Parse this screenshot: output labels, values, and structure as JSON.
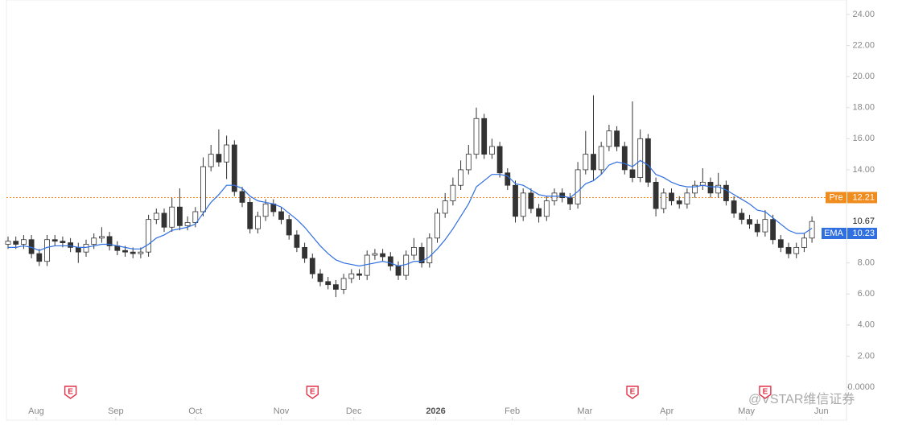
{
  "chart_data": {
    "type": "candlestick",
    "ylim": [
      0,
      24
    ],
    "yticks": [
      {
        "value": 24,
        "label": "24.00"
      },
      {
        "value": 22,
        "label": "22.00"
      },
      {
        "value": 20,
        "label": "20.00"
      },
      {
        "value": 18,
        "label": "18.00"
      },
      {
        "value": 16,
        "label": "16.00"
      },
      {
        "value": 14,
        "label": "14.00"
      },
      {
        "value": 12,
        "label": "12.00"
      },
      {
        "value": 10,
        "label": "10.00"
      },
      {
        "value": 8,
        "label": "8.00"
      },
      {
        "value": 6,
        "label": "6.00"
      },
      {
        "value": 4,
        "label": "4.00"
      },
      {
        "value": 2,
        "label": "2.00"
      },
      {
        "value": 0,
        "label": "0.0000"
      }
    ],
    "xticks": [
      {
        "value": 3.6,
        "label": "Aug"
      },
      {
        "value": 13.8,
        "label": "Sep"
      },
      {
        "value": 24,
        "label": "Oct"
      },
      {
        "value": 35,
        "label": "Nov"
      },
      {
        "value": 44.3,
        "label": "Dec"
      },
      {
        "value": 54.8,
        "label": "2026"
      },
      {
        "value": 64.6,
        "label": "Feb"
      },
      {
        "value": 73.9,
        "label": "Mar"
      },
      {
        "value": 84.4,
        "label": "Apr"
      },
      {
        "value": 94.6,
        "label": "May"
      },
      {
        "value": 104.2,
        "label": "Jun"
      }
    ],
    "open": [
      9.2,
      9.4,
      9.2,
      9.5,
      8.6,
      8.1,
      9.5,
      9.4,
      9.3,
      9.0,
      8.7,
      9.2,
      9.6,
      9.7,
      9.1,
      8.8,
      8.7,
      8.6,
      8.7,
      10.8,
      11.2,
      10.3,
      11.6,
      10.4,
      10.6,
      11.3,
      14.2,
      15.0,
      14.5,
      15.6,
      12.6,
      11.9,
      10.2,
      11.0,
      11.8,
      11.3,
      10.8,
      9.8,
      9.0,
      8.3,
      7.3,
      6.8,
      6.6,
      6.3,
      7.0,
      7.3,
      7.2,
      8.5,
      8.6,
      8.4,
      7.8,
      7.2,
      8.5,
      9.0,
      8.0,
      9.6,
      11.2,
      12.0,
      13.0,
      14.0,
      15.0,
      17.3,
      15.0,
      15.5,
      13.8,
      13.0,
      11.0,
      12.5,
      11.5,
      11.0,
      12.0,
      12.5,
      12.2,
      11.8,
      14.0,
      15.0,
      14.0,
      15.5,
      16.5,
      15.5,
      14.0,
      13.5,
      16.0,
      13.2,
      11.5,
      12.5,
      12.0,
      11.8,
      12.5,
      13.0,
      13.2,
      12.5,
      13.0,
      12.0,
      11.2,
      10.8,
      10.5,
      10.0,
      10.8,
      9.5,
      9.0,
      8.6,
      9.0,
      9.6
    ],
    "high": [
      9.7,
      9.7,
      9.8,
      9.8,
      8.9,
      9.8,
      9.8,
      9.7,
      9.6,
      9.3,
      9.5,
      9.9,
      10.3,
      10.0,
      9.4,
      9.1,
      9.0,
      9.0,
      11.1,
      11.5,
      11.5,
      12.2,
      12.8,
      11.0,
      11.6,
      14.8,
      15.6,
      16.6,
      16.2,
      15.9,
      12.9,
      12.2,
      11.3,
      12.1,
      12.1,
      11.6,
      11.1,
      10.1,
      9.3,
      8.6,
      7.6,
      7.1,
      6.9,
      7.3,
      7.6,
      7.6,
      8.8,
      8.9,
      8.9,
      8.7,
      8.1,
      8.8,
      9.6,
      9.3,
      9.9,
      11.5,
      12.5,
      13.5,
      14.6,
      15.6,
      18.0,
      17.6,
      16.0,
      15.8,
      14.1,
      13.3,
      12.8,
      12.8,
      11.8,
      12.3,
      12.8,
      12.8,
      12.5,
      14.5,
      16.5,
      18.8,
      15.8,
      16.9,
      16.8,
      15.8,
      18.4,
      16.6,
      16.3,
      13.5,
      12.8,
      12.8,
      12.3,
      12.8,
      13.3,
      14.1,
      13.5,
      13.8,
      13.3,
      12.3,
      11.5,
      11.1,
      10.8,
      11.4,
      11.1,
      9.8,
      9.3,
      9.3,
      9.9,
      11.0
    ],
    "low": [
      8.9,
      8.9,
      8.9,
      8.3,
      7.8,
      7.8,
      9.1,
      9.0,
      8.7,
      8.0,
      8.4,
      8.9,
      9.3,
      8.8,
      8.5,
      8.4,
      8.3,
      8.3,
      8.4,
      10.5,
      10.0,
      10.0,
      10.1,
      10.1,
      10.3,
      11.0,
      13.9,
      14.2,
      13.4,
      12.3,
      11.6,
      9.9,
      9.9,
      10.7,
      11.0,
      10.5,
      9.5,
      8.7,
      8.0,
      7.0,
      6.5,
      6.3,
      5.8,
      6.0,
      6.7,
      6.9,
      6.9,
      8.2,
      8.1,
      7.5,
      6.9,
      6.9,
      8.2,
      7.7,
      7.7,
      9.3,
      10.9,
      11.7,
      12.7,
      13.7,
      14.7,
      14.7,
      14.7,
      13.5,
      12.7,
      10.6,
      10.7,
      11.2,
      10.6,
      10.7,
      11.7,
      11.9,
      11.4,
      11.5,
      13.7,
      13.3,
      13.7,
      15.2,
      15.2,
      13.7,
      13.2,
      13.2,
      12.9,
      11.0,
      11.2,
      11.7,
      11.5,
      11.5,
      12.2,
      12.7,
      12.2,
      12.2,
      11.7,
      10.9,
      10.5,
      10.2,
      9.7,
      9.7,
      9.2,
      8.7,
      8.3,
      8.3,
      8.7,
      9.3
    ],
    "close": [
      9.4,
      9.2,
      9.5,
      8.6,
      8.1,
      9.5,
      9.4,
      9.3,
      9.0,
      8.7,
      9.2,
      9.6,
      9.7,
      9.1,
      8.8,
      8.7,
      8.6,
      8.7,
      10.8,
      11.2,
      10.3,
      11.6,
      10.4,
      10.6,
      11.3,
      14.2,
      15.0,
      14.5,
      15.6,
      12.6,
      11.9,
      10.2,
      11.0,
      11.8,
      11.3,
      10.8,
      9.8,
      9.0,
      8.3,
      7.3,
      6.8,
      6.6,
      6.3,
      7.0,
      7.3,
      7.2,
      8.5,
      8.6,
      8.4,
      7.8,
      7.2,
      8.5,
      9.0,
      8.0,
      9.6,
      11.2,
      12.0,
      13.0,
      14.0,
      15.0,
      17.3,
      15.0,
      15.5,
      13.8,
      13.0,
      11.0,
      12.5,
      11.5,
      11.0,
      12.0,
      12.5,
      12.2,
      11.8,
      14.0,
      15.0,
      14.0,
      15.5,
      16.5,
      15.5,
      14.0,
      13.5,
      16.0,
      13.2,
      11.5,
      12.5,
      12.0,
      11.8,
      12.5,
      13.0,
      13.2,
      12.5,
      13.0,
      12.0,
      11.2,
      10.8,
      10.5,
      10.0,
      10.8,
      9.5,
      9.0,
      8.6,
      9.0,
      9.6,
      10.67
    ],
    "ema": {
      "name": "EMA",
      "color": "#2f6fe0",
      "values": [
        9.0,
        9.0,
        9.1,
        9.0,
        8.8,
        9.0,
        9.1,
        9.1,
        9.1,
        9.0,
        9.0,
        9.1,
        9.2,
        9.2,
        9.1,
        9.0,
        8.9,
        8.9,
        9.2,
        9.6,
        9.8,
        10.1,
        10.2,
        10.3,
        10.5,
        11.2,
        11.9,
        12.4,
        13.0,
        13.0,
        12.8,
        12.3,
        12.0,
        11.9,
        11.8,
        11.6,
        11.2,
        10.8,
        10.3,
        9.7,
        9.1,
        8.6,
        8.2,
        8.0,
        7.9,
        7.8,
        7.9,
        8.0,
        8.1,
        8.0,
        7.8,
        7.9,
        8.1,
        8.1,
        8.4,
        8.9,
        9.5,
        10.2,
        11.0,
        11.8,
        12.9,
        13.3,
        13.7,
        13.7,
        13.6,
        13.1,
        13.0,
        12.7,
        12.4,
        12.3,
        12.3,
        12.3,
        12.2,
        12.6,
        13.1,
        13.3,
        13.7,
        14.3,
        14.5,
        14.4,
        14.2,
        14.6,
        14.3,
        13.7,
        13.5,
        13.2,
        13.0,
        12.9,
        12.9,
        13.0,
        12.9,
        12.9,
        12.7,
        12.4,
        12.1,
        11.8,
        11.4,
        11.3,
        10.9,
        10.5,
        10.1,
        9.9,
        9.9,
        10.23
      ]
    },
    "pre": {
      "name": "Pre",
      "value": 12.21,
      "color": "#f08c1e"
    },
    "last_price": 10.67,
    "events": [
      {
        "x": 8,
        "label": "E"
      },
      {
        "x": 39,
        "label": "E"
      },
      {
        "x": 80,
        "label": "E"
      },
      {
        "x": 97,
        "label": "E"
      }
    ],
    "watermark": "@VSTAR维信证券"
  }
}
